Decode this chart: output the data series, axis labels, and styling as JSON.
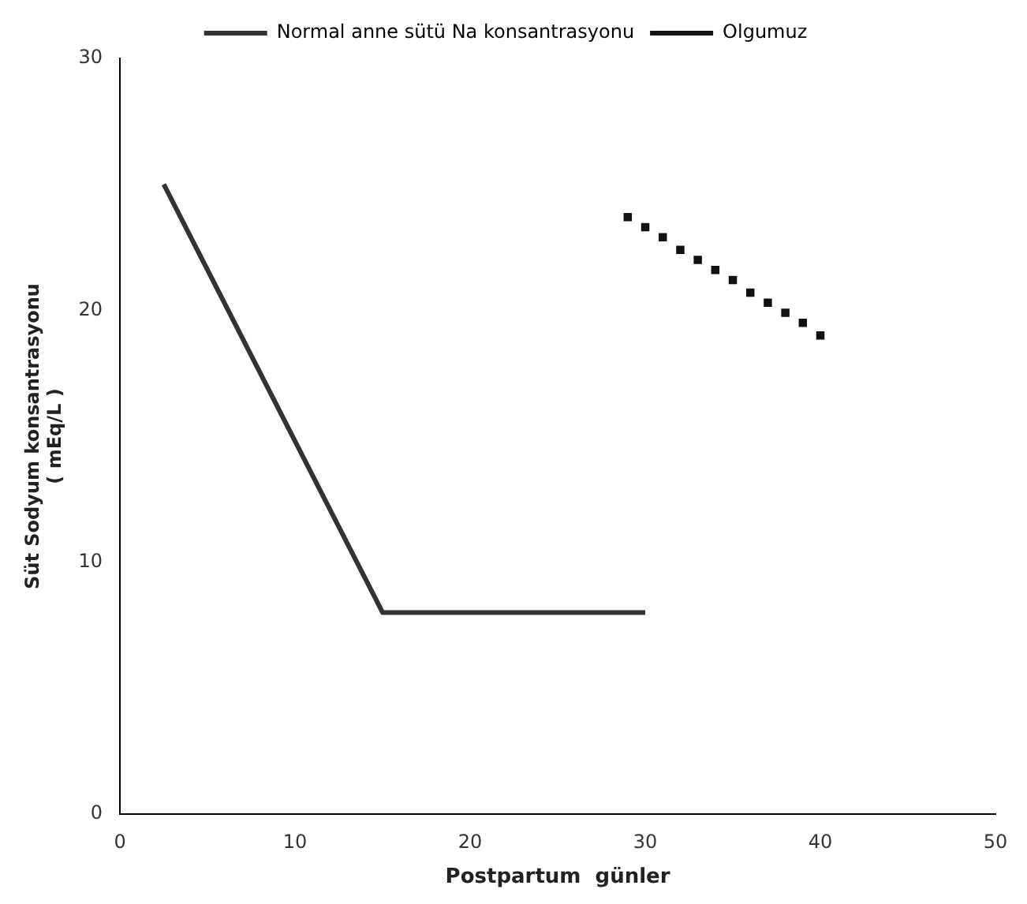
{
  "chart_data": {
    "type": "line",
    "xlabel": "Postpartum  günler",
    "ylabel": "Süt Sodyum konsantrasyonu\n( mEq/L )",
    "xlim": [
      0,
      50
    ],
    "xticks": [
      0,
      10,
      20,
      30,
      40,
      50
    ],
    "ylim": [
      0,
      30
    ],
    "yticks": [
      0,
      10,
      20,
      30
    ],
    "grid": false,
    "legend": "top",
    "marker": "none",
    "series": [
      {
        "name": "Normal anne sütü Na konsantrasyonu",
        "color": "#333333",
        "line_style": "solid",
        "x": [
          2.5,
          15,
          30
        ],
        "values": [
          25,
          8,
          8
        ]
      },
      {
        "name": "Olgumuz",
        "color": "#111111",
        "type": "scatter",
        "marker": "square",
        "x": [
          29,
          30,
          31,
          32,
          33,
          34,
          35,
          36,
          37,
          38,
          39,
          40
        ],
        "values": [
          23.7,
          23.3,
          22.9,
          22.4,
          22,
          21.6,
          21.2,
          20.7,
          20.3,
          19.9,
          19.5,
          19
        ]
      }
    ]
  }
}
